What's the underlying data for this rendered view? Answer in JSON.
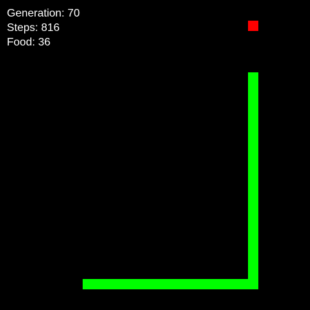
{
  "colors": {
    "background": "#000000",
    "hud_text": "#ffffff",
    "snake": "#00ff00",
    "food": "#ff0000"
  },
  "hud": {
    "generation": "Generation: 70",
    "steps": "Steps: 816",
    "food": "Food: 36"
  },
  "grid": {
    "columns": 30,
    "rows": 30
  },
  "food_cell": {
    "col": 24,
    "row": 2
  },
  "snake_cells": [
    {
      "col": 24,
      "row": 7
    },
    {
      "col": 24,
      "row": 8
    },
    {
      "col": 24,
      "row": 9
    },
    {
      "col": 24,
      "row": 10
    },
    {
      "col": 24,
      "row": 11
    },
    {
      "col": 24,
      "row": 12
    },
    {
      "col": 24,
      "row": 13
    },
    {
      "col": 24,
      "row": 14
    },
    {
      "col": 24,
      "row": 15
    },
    {
      "col": 24,
      "row": 16
    },
    {
      "col": 24,
      "row": 17
    },
    {
      "col": 24,
      "row": 18
    },
    {
      "col": 24,
      "row": 19
    },
    {
      "col": 24,
      "row": 20
    },
    {
      "col": 24,
      "row": 21
    },
    {
      "col": 24,
      "row": 22
    },
    {
      "col": 24,
      "row": 23
    },
    {
      "col": 24,
      "row": 24
    },
    {
      "col": 24,
      "row": 25
    },
    {
      "col": 24,
      "row": 26
    },
    {
      "col": 24,
      "row": 27
    },
    {
      "col": 23,
      "row": 27
    },
    {
      "col": 22,
      "row": 27
    },
    {
      "col": 21,
      "row": 27
    },
    {
      "col": 20,
      "row": 27
    },
    {
      "col": 19,
      "row": 27
    },
    {
      "col": 18,
      "row": 27
    },
    {
      "col": 17,
      "row": 27
    },
    {
      "col": 16,
      "row": 27
    },
    {
      "col": 15,
      "row": 27
    },
    {
      "col": 14,
      "row": 27
    },
    {
      "col": 13,
      "row": 27
    },
    {
      "col": 12,
      "row": 27
    },
    {
      "col": 11,
      "row": 27
    },
    {
      "col": 10,
      "row": 27
    },
    {
      "col": 9,
      "row": 27
    },
    {
      "col": 8,
      "row": 27
    }
  ]
}
